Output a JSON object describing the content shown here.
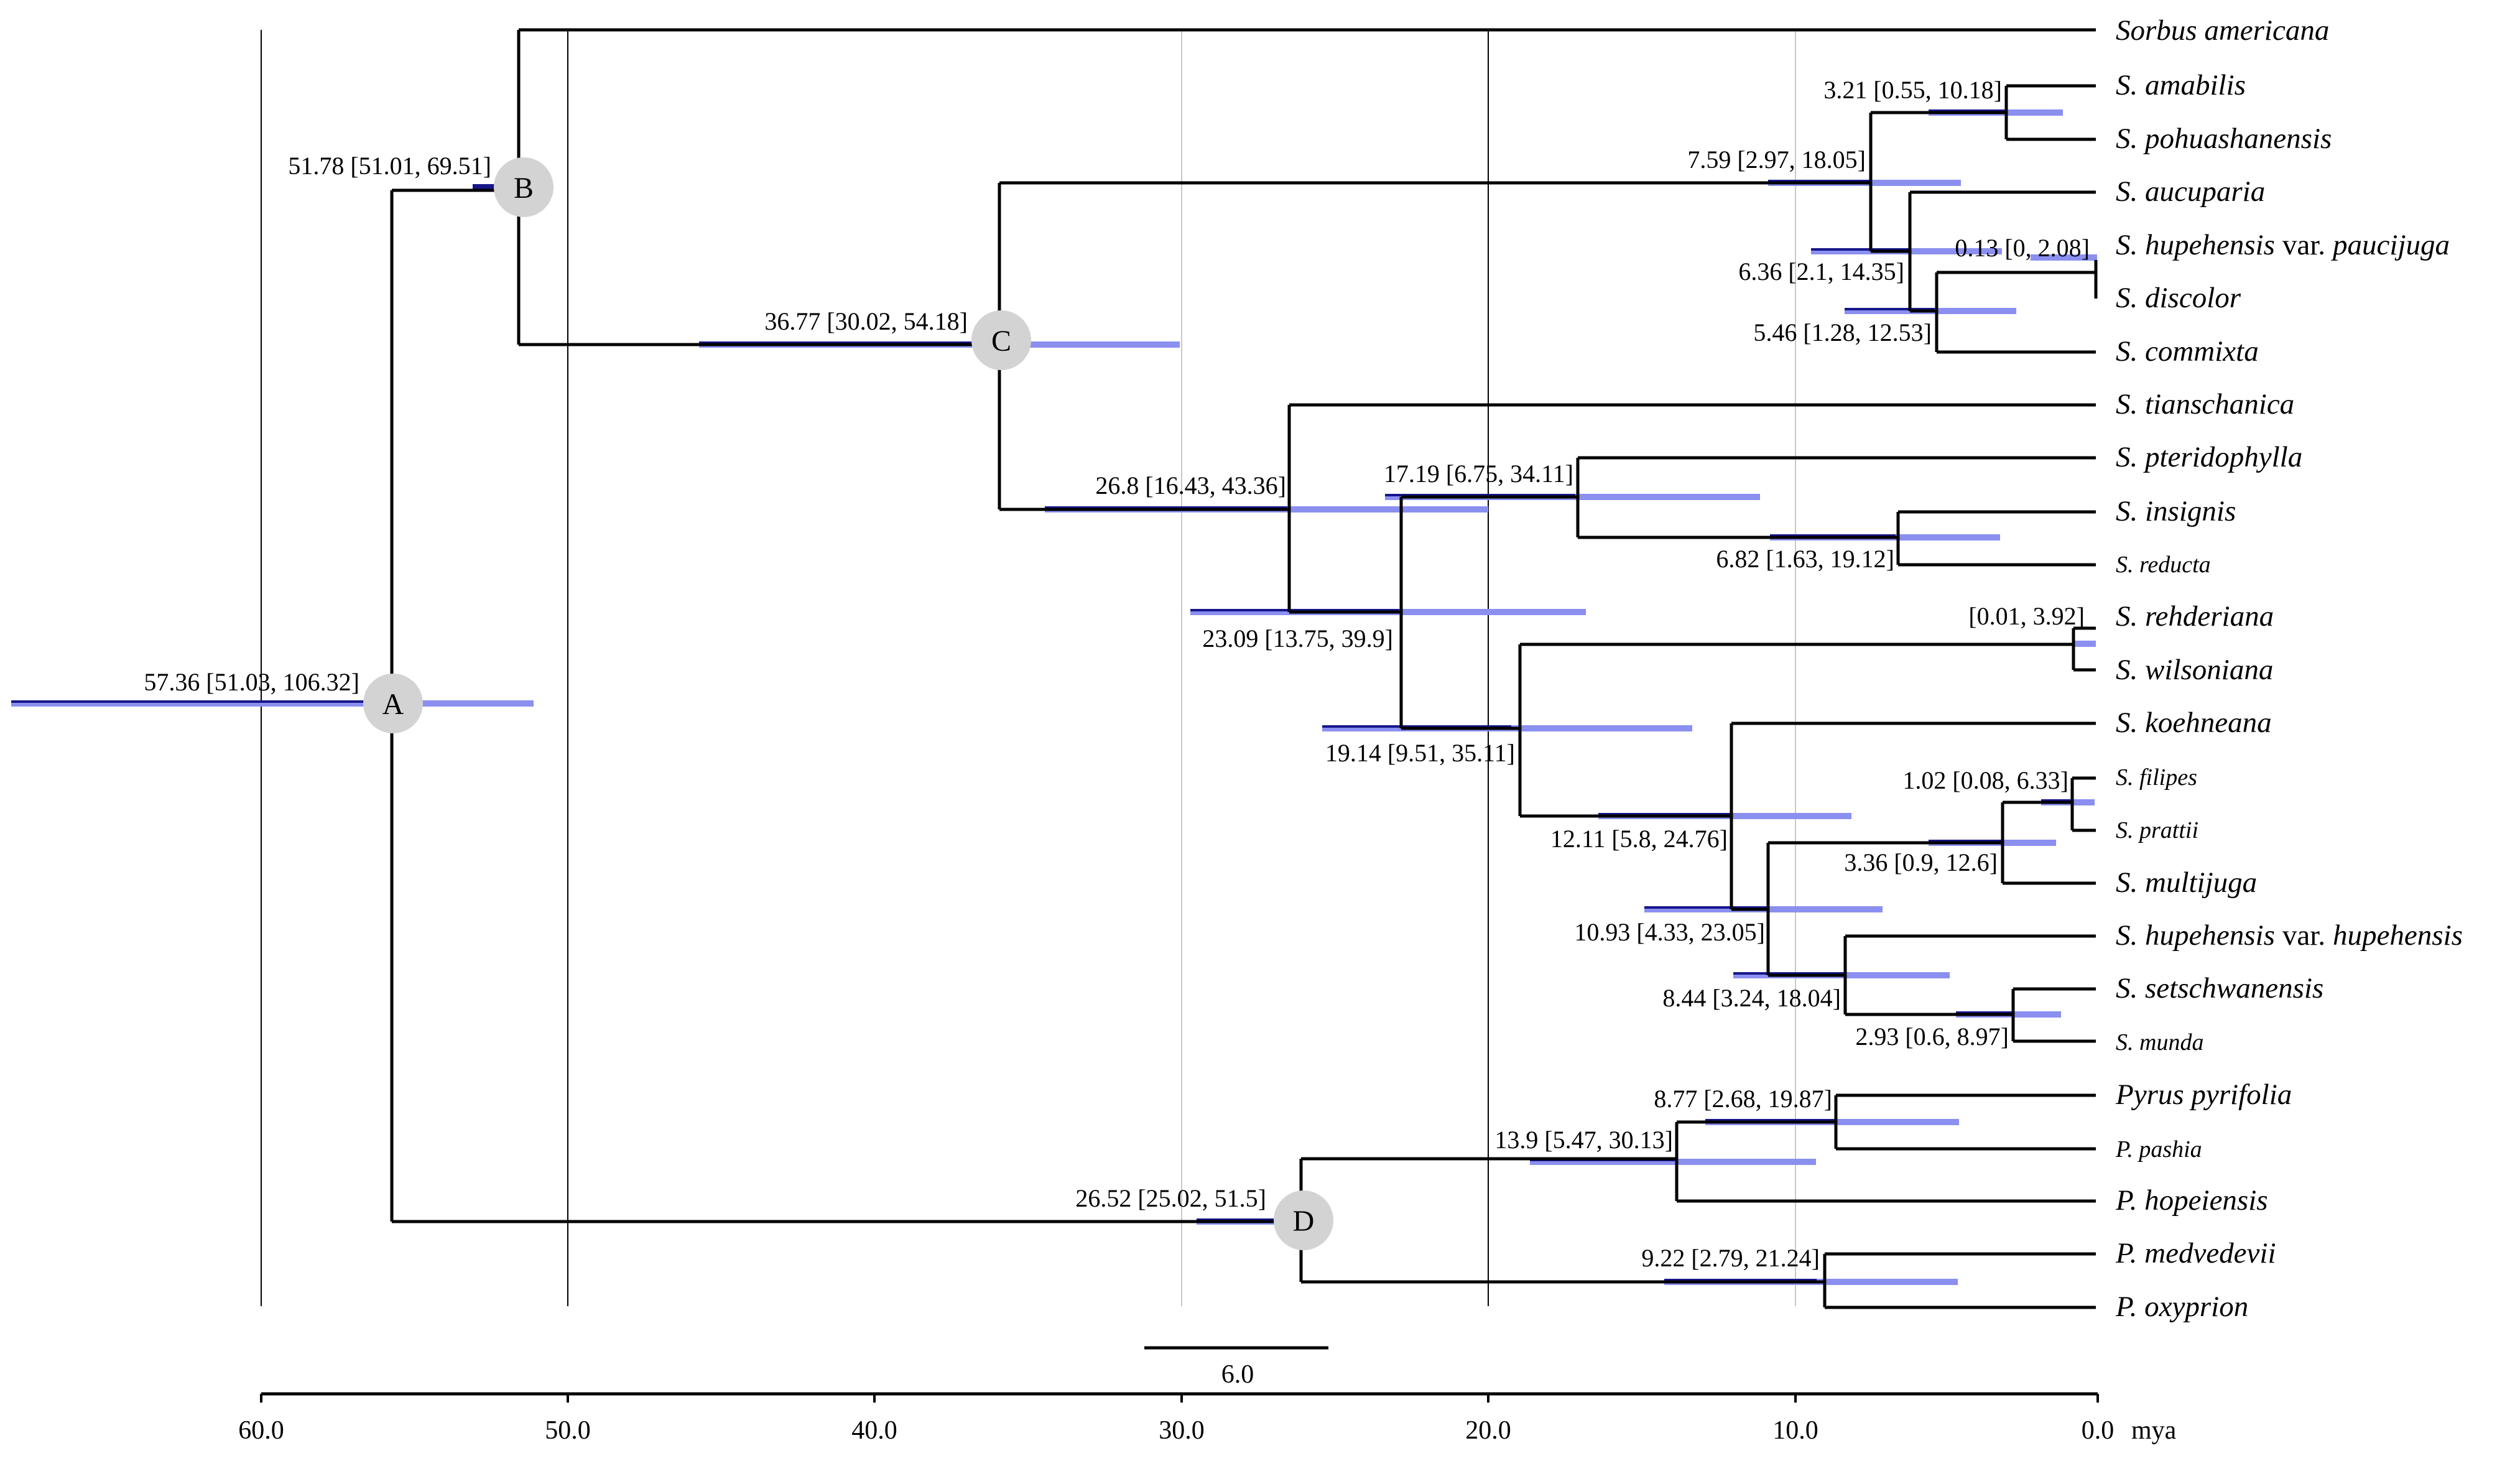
{
  "colors": {
    "bar_light": "#8a8ff0",
    "bar_dark": "#16168a",
    "node_fill": "#d3d3d3",
    "line": "#000000"
  },
  "axis": {
    "ticks": [
      "60.0",
      "50.0",
      "40.0",
      "30.0",
      "20.0",
      "10.0",
      "0.0"
    ],
    "unit": "mya"
  },
  "scale_bar": {
    "value": "6.0"
  },
  "nodes": {
    "A": "A",
    "B": "B",
    "C": "C",
    "D": "D"
  },
  "taxa": [
    {
      "genus": "Sorbus americana",
      "var": ""
    },
    {
      "genus": "S. amabilis",
      "var": ""
    },
    {
      "genus": "S. pohuashanensis",
      "var": ""
    },
    {
      "genus": "S. aucuparia",
      "var": ""
    },
    {
      "genus": "S. hupehensis",
      "var": "var.",
      "epithet": "paucijuga"
    },
    {
      "genus": "S. discolor",
      "var": ""
    },
    {
      "genus": "S. commixta",
      "var": ""
    },
    {
      "genus": "S. tianschanica",
      "var": ""
    },
    {
      "genus": "S. pteridophylla",
      "var": ""
    },
    {
      "genus": "S. insignis",
      "var": ""
    },
    {
      "genus": "S. reducta",
      "var": ""
    },
    {
      "genus": "S. rehderiana",
      "var": ""
    },
    {
      "genus": "S. wilsoniana",
      "var": ""
    },
    {
      "genus": "S. koehneana",
      "var": ""
    },
    {
      "genus": "S. filipes",
      "var": ""
    },
    {
      "genus": "S. prattii",
      "var": ""
    },
    {
      "genus": "S. multijuga",
      "var": ""
    },
    {
      "genus": "S. hupehensis",
      "var": "var.",
      "epithet": "hupehensis"
    },
    {
      "genus": "S. setschwanensis",
      "var": ""
    },
    {
      "genus": "S. munda",
      "var": ""
    },
    {
      "genus": "Pyrus pyrifolia",
      "var": ""
    },
    {
      "genus": "P. pashia",
      "var": ""
    },
    {
      "genus": "P. hopeiensis",
      "var": ""
    },
    {
      "genus": "P. medvedevii",
      "var": ""
    },
    {
      "genus": "P. oxyprion",
      "var": ""
    }
  ],
  "dates": [
    "57.36 [51.03, 106.32]",
    "51.78 [51.01, 69.51]",
    "36.77 [30.02, 54.18]",
    "26.52 [25.02, 51.5]",
    "26.8 [16.43, 43.36]",
    "23.09 [13.75, 39.9]",
    "17.19 [6.75, 34.11]",
    "19.14 [9.51, 35.11]",
    "7.59 [2.97, 18.05]",
    "6.36 [2.1, 14.35]",
    "5.46 [1.28, 12.53]",
    "3.21 [0.55, 10.18]",
    "0.13 [0, 2.08]",
    "6.82 [1.63, 19.12]",
    "[0.01, 3.92]",
    "12.11 [5.8, 24.76]",
    "10.93 [4.33, 23.05]",
    "1.02 [0.08, 6.33]",
    "3.36 [0.9, 12.6]",
    "8.44 [3.24, 18.04]",
    "2.93 [0.6, 8.97]",
    "8.77 [2.68, 19.87]",
    "13.9 [5.47, 30.13]",
    "9.22 [2.79, 21.24]"
  ]
}
